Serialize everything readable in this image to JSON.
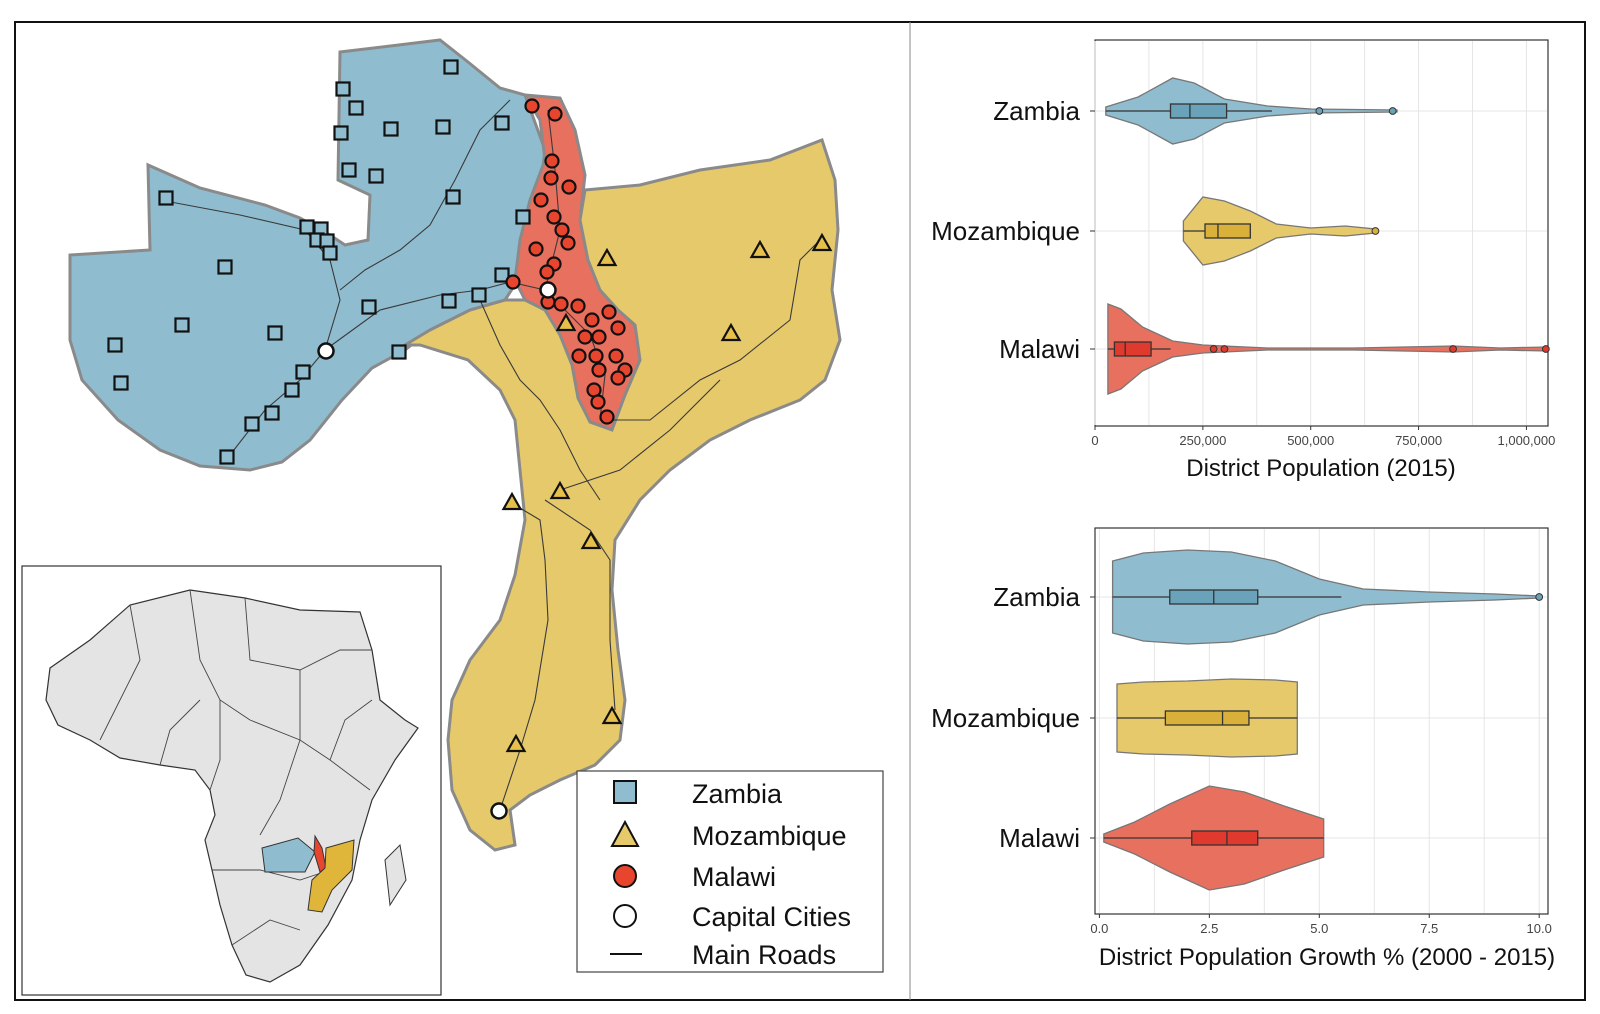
{
  "colors": {
    "Zambia": "#8fbdcf",
    "Mozambique": "#e6c96b",
    "Malawi": "#e8705f",
    "outline": "#555555"
  },
  "legend": {
    "items": [
      {
        "label": "Zambia",
        "icon": "square-marker-icon"
      },
      {
        "label": "Mozambique",
        "icon": "triangle-marker-icon"
      },
      {
        "label": "Malawi",
        "icon": "circle-marker-icon"
      },
      {
        "label": "Capital Cities",
        "icon": "hollow-circle-icon"
      },
      {
        "label": "Main Roads",
        "icon": "line-icon"
      }
    ]
  },
  "chart_data": [
    {
      "type": "box",
      "subtype": "violin-box",
      "orientation": "horizontal",
      "categories": [
        "Zambia",
        "Mozambique",
        "Malawi"
      ],
      "xlabel": "District Population (2015)",
      "xlim": [
        0,
        1050000
      ],
      "xticks": [
        0,
        250000,
        500000,
        750000,
        1000000
      ],
      "xtick_labels": [
        "0",
        "250,000",
        "500,000",
        "750,000",
        "1,000,000"
      ],
      "grid": true,
      "series": [
        {
          "name": "Zambia",
          "min": 25000,
          "q1": 175000,
          "median": 220000,
          "q3": 305000,
          "max": 410000,
          "outliers": [
            520000,
            690000
          ],
          "violin": [
            [
              25000,
              4
            ],
            [
              100000,
              14
            ],
            [
              180000,
              33
            ],
            [
              230000,
              28
            ],
            [
              300000,
              12
            ],
            [
              400000,
              5
            ],
            [
              500000,
              2
            ],
            [
              600000,
              1.5
            ],
            [
              700000,
              1
            ]
          ]
        },
        {
          "name": "Mozambique",
          "min": 205000,
          "q1": 255000,
          "median": 285000,
          "q3": 360000,
          "max": 360000,
          "outliers": [
            650000
          ],
          "violin": [
            [
              205000,
              10
            ],
            [
              250000,
              34
            ],
            [
              300000,
              30
            ],
            [
              360000,
              20
            ],
            [
              420000,
              7
            ],
            [
              500000,
              3
            ],
            [
              580000,
              5
            ],
            [
              650000,
              2
            ]
          ]
        },
        {
          "name": "Malawi",
          "min": 30000,
          "q1": 45000,
          "median": 70000,
          "q3": 130000,
          "max": 175000,
          "outliers": [
            275000,
            300000,
            830000,
            1045000
          ],
          "violin": [
            [
              30000,
              45
            ],
            [
              60000,
              40
            ],
            [
              110000,
              22
            ],
            [
              180000,
              8
            ],
            [
              250000,
              4
            ],
            [
              300000,
              3
            ],
            [
              400000,
              1
            ],
            [
              600000,
              1
            ],
            [
              830000,
              3
            ],
            [
              940000,
              1
            ],
            [
              1045000,
              2
            ]
          ]
        }
      ]
    },
    {
      "type": "box",
      "subtype": "violin-box",
      "orientation": "horizontal",
      "categories": [
        "Zambia",
        "Mozambique",
        "Malawi"
      ],
      "xlabel": "District Population Growth % (2000 - 2015)",
      "xlim": [
        -0.1,
        10.2
      ],
      "xticks": [
        0,
        2.5,
        5,
        7.5,
        10
      ],
      "xtick_labels": [
        "0.0",
        "2.5",
        "5.0",
        "7.5",
        "10.0"
      ],
      "grid": true,
      "series": [
        {
          "name": "Zambia",
          "min": 0.3,
          "q1": 1.6,
          "median": 2.6,
          "q3": 3.6,
          "max": 5.5,
          "outliers": [
            10.0
          ],
          "violin": [
            [
              0.3,
              36
            ],
            [
              1.0,
              44
            ],
            [
              2.0,
              47
            ],
            [
              3.0,
              45
            ],
            [
              4.0,
              36
            ],
            [
              5.0,
              18
            ],
            [
              6.0,
              8
            ],
            [
              7.5,
              5
            ],
            [
              9.0,
              3
            ],
            [
              10.0,
              1
            ]
          ]
        },
        {
          "name": "Mozambique",
          "min": 0.4,
          "q1": 1.5,
          "median": 2.8,
          "q3": 3.4,
          "max": 4.5,
          "outliers": [],
          "violin": [
            [
              0.4,
              34
            ],
            [
              1.0,
              36
            ],
            [
              2.0,
              37
            ],
            [
              3.0,
              39
            ],
            [
              4.0,
              38
            ],
            [
              4.5,
              36
            ]
          ]
        },
        {
          "name": "Malawi",
          "min": 0.1,
          "q1": 2.1,
          "median": 2.9,
          "q3": 3.6,
          "max": 5.1,
          "outliers": [],
          "violin": [
            [
              0.1,
              4
            ],
            [
              0.8,
              16
            ],
            [
              1.6,
              34
            ],
            [
              2.5,
              52
            ],
            [
              3.3,
              46
            ],
            [
              4.2,
              32
            ],
            [
              5.1,
              19
            ]
          ]
        }
      ]
    }
  ]
}
